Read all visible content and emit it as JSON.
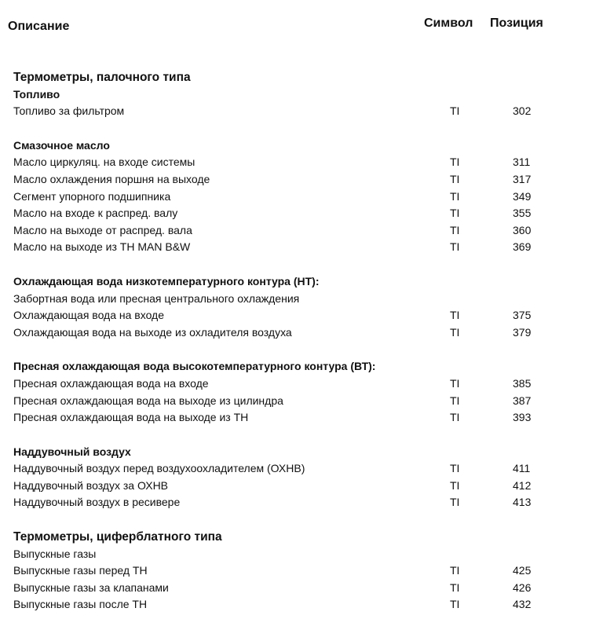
{
  "header": {
    "description": "Описание",
    "symbol": "Символ",
    "position": "Позиция"
  },
  "sections": [
    {
      "lines": [
        {
          "kind": "title",
          "text": "Термометры, палочного типа"
        },
        {
          "kind": "sub",
          "text": "Топливо"
        },
        {
          "kind": "item",
          "text": "Топливо за фильтром",
          "symbol": "TI",
          "position": "302"
        }
      ]
    },
    {
      "lines": [
        {
          "kind": "sub",
          "text": "Смазочное масло"
        },
        {
          "kind": "item",
          "text": "Масло циркуляц. на входе системы",
          "symbol": "TI",
          "position": "311"
        },
        {
          "kind": "item",
          "text": "Масло охлаждения поршня на выходе",
          "symbol": "TI",
          "position": "317"
        },
        {
          "kind": "item",
          "text": "Сегмент упорного подшипника",
          "symbol": "TI",
          "position": "349"
        },
        {
          "kind": "item",
          "text": "Масло на входе к распред. валу",
          "symbol": "TI",
          "position": "355"
        },
        {
          "kind": "item",
          "text": "Масло на выходе от распред. вала",
          "symbol": "TI",
          "position": "360"
        },
        {
          "kind": "item",
          "text": "Масло на выходе из ТН MAN B&W",
          "symbol": "TI",
          "position": "369"
        }
      ]
    },
    {
      "lines": [
        {
          "kind": "sub",
          "text": "Охлаждающая вода низкотемпературного контура (НТ):"
        },
        {
          "kind": "item",
          "text": "Забортная вода или пресная центрального охлаждения"
        },
        {
          "kind": "item",
          "text": "Охлаждающая вода на входе",
          "symbol": "TI",
          "position": "375"
        },
        {
          "kind": "item",
          "text": "Охлаждающая вода на выходе из охладителя воздуха",
          "symbol": "TI",
          "position": "379"
        }
      ]
    },
    {
      "lines": [
        {
          "kind": "sub",
          "text": "Пресная охлаждающая вода высокотемпературного контура (ВТ):"
        },
        {
          "kind": "item",
          "text": "Пресная охлаждающая вода на входе",
          "symbol": "TI",
          "position": "385"
        },
        {
          "kind": "item",
          "text": "Пресная охлаждающая вода на выходе из цилиндра",
          "symbol": "TI",
          "position": "387"
        },
        {
          "kind": "item",
          "text": "Пресная охлаждающая вода на выходе из ТН",
          "symbol": "TI",
          "position": "393"
        }
      ]
    },
    {
      "lines": [
        {
          "kind": "sub",
          "text": "Наддувочный воздух"
        },
        {
          "kind": "item",
          "text": "Наддувочный воздух перед воздухоохладителем (ОХНВ)",
          "symbol": "TI",
          "position": "411"
        },
        {
          "kind": "item",
          "text": "Наддувочный воздух за ОХНВ",
          "symbol": "TI",
          "position": "412"
        },
        {
          "kind": "item",
          "text": "Наддувочный воздух в ресивере",
          "symbol": "TI",
          "position": "413"
        }
      ]
    },
    {
      "lines": [
        {
          "kind": "title",
          "text": "Термометры, циферблатного типа"
        },
        {
          "kind": "item",
          "text": "Выпускные газы"
        },
        {
          "kind": "item",
          "text": "Выпускные газы перед ТН",
          "symbol": "TI",
          "position": "425"
        },
        {
          "kind": "item",
          "text": "Выпускные газы за клапанами",
          "symbol": "TI",
          "position": "426"
        },
        {
          "kind": "item",
          "text": "Выпускные газы после ТН",
          "symbol": "TI",
          "position": "432"
        }
      ]
    }
  ]
}
